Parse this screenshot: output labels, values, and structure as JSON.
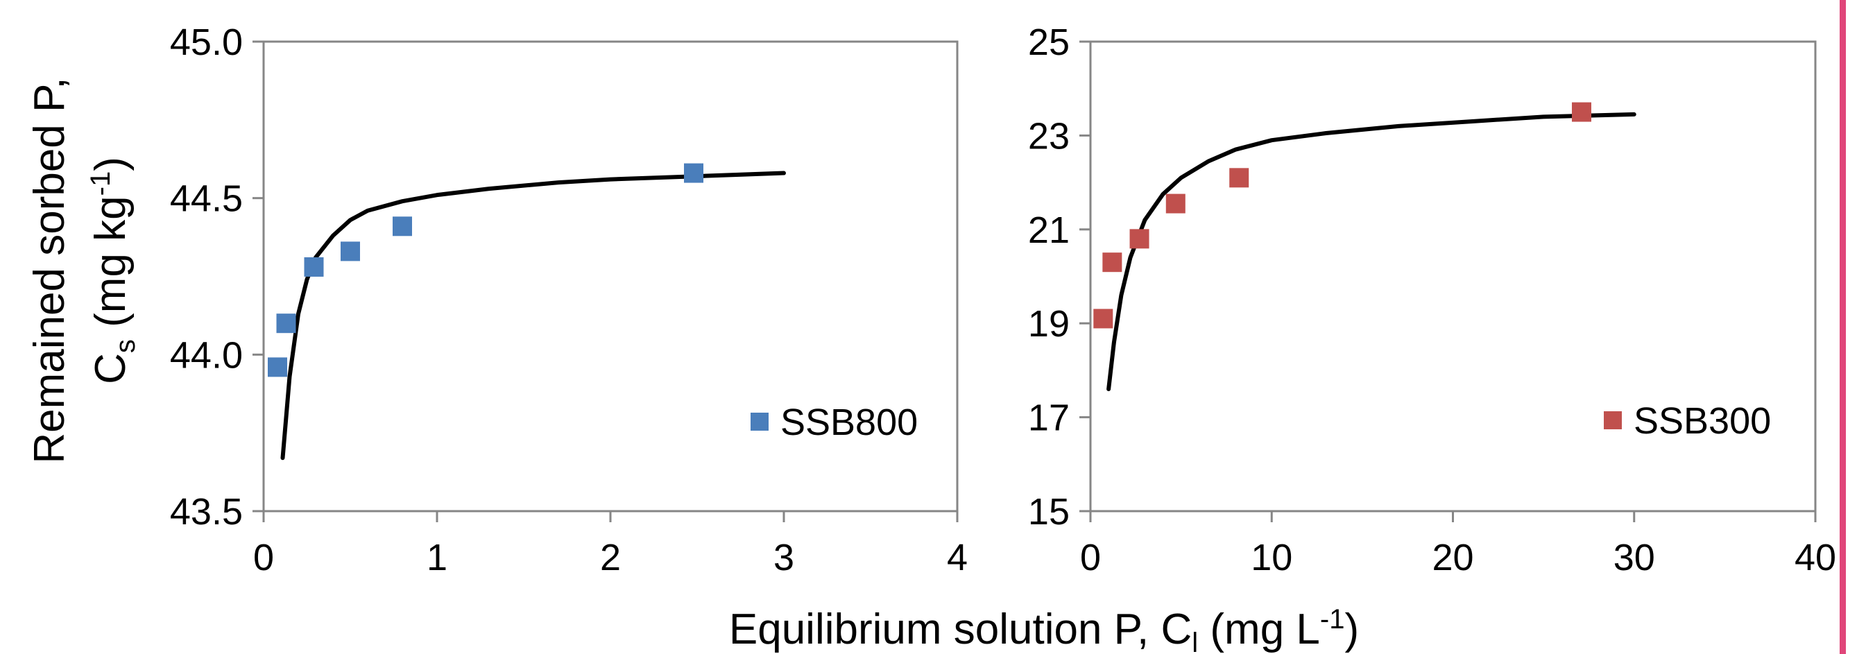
{
  "figure": {
    "ylabel_line1": "Remained sorbed  P,",
    "ylabel_line2_main": "C",
    "ylabel_line2_sub": "s",
    "ylabel_line2_rest": " (mg kg",
    "ylabel_line2_sup": "-1",
    "ylabel_line2_end": ")",
    "xlabel_main": "Equilibrium solution P, C",
    "xlabel_sub": "l",
    "xlabel_rest": " (mg L",
    "xlabel_sup": "-1",
    "xlabel_end": ")",
    "accent_bar_color": "#e0467a"
  },
  "chart_data": [
    {
      "type": "scatter",
      "xlim": [
        0,
        4
      ],
      "ylim": [
        43.5,
        45.0
      ],
      "x_ticks": [
        "0",
        "1",
        "2",
        "3",
        "4"
      ],
      "y_ticks": [
        "43.5",
        "44.0",
        "44.5",
        "45.0"
      ],
      "grid": false,
      "legend_position": "bottom-right",
      "series": [
        {
          "name": "SSB800",
          "kind": "points",
          "color": "#4a7ebb",
          "x": [
            0.08,
            0.13,
            0.29,
            0.5,
            0.8,
            2.48
          ],
          "y": [
            43.96,
            44.1,
            44.28,
            44.33,
            44.41,
            44.58
          ]
        },
        {
          "kind": "fit-line",
          "color": "#000000",
          "x": [
            0.11,
            0.15,
            0.2,
            0.25,
            0.3,
            0.4,
            0.5,
            0.6,
            0.8,
            1.0,
            1.3,
            1.7,
            2.0,
            2.5,
            3.0
          ],
          "y": [
            43.67,
            43.93,
            44.13,
            44.24,
            44.31,
            44.38,
            44.43,
            44.46,
            44.49,
            44.51,
            44.53,
            44.55,
            44.56,
            44.57,
            44.58
          ]
        }
      ]
    },
    {
      "type": "scatter",
      "xlim": [
        0,
        40
      ],
      "ylim": [
        15,
        25
      ],
      "x_ticks": [
        "0",
        "10",
        "20",
        "30",
        "40"
      ],
      "y_ticks": [
        "15",
        "17",
        "19",
        "21",
        "23",
        "25"
      ],
      "grid": false,
      "legend_position": "bottom-right",
      "series": [
        {
          "name": "SSB300",
          "kind": "points",
          "color": "#c0504d",
          "x": [
            0.7,
            1.2,
            2.7,
            4.7,
            8.2,
            27.1
          ],
          "y": [
            19.1,
            20.3,
            20.8,
            21.55,
            22.1,
            23.5
          ]
        },
        {
          "kind": "fit-line",
          "color": "#000000",
          "x": [
            1.0,
            1.3,
            1.7,
            2.2,
            3.0,
            4.0,
            5.0,
            6.5,
            8.0,
            10.0,
            13.0,
            17.0,
            21.0,
            25.0,
            30.0
          ],
          "y": [
            17.6,
            18.6,
            19.6,
            20.4,
            21.2,
            21.75,
            22.1,
            22.45,
            22.7,
            22.9,
            23.05,
            23.2,
            23.3,
            23.4,
            23.45
          ]
        }
      ]
    }
  ]
}
